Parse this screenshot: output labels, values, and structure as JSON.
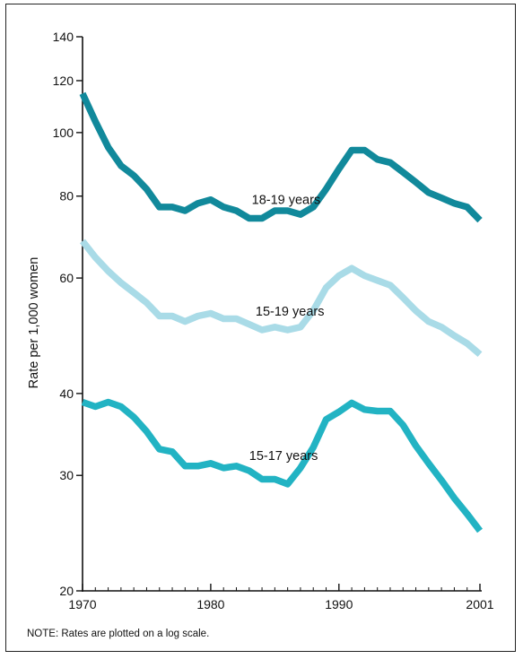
{
  "chart_data": {
    "type": "line",
    "ylabel": "Rate per 1,000 women",
    "xlabel": "",
    "yscale": "log",
    "ylim": [
      20,
      140
    ],
    "xlim": [
      1970,
      2001
    ],
    "yticks": [
      20,
      30,
      40,
      60,
      80,
      100,
      120,
      140
    ],
    "xtick_labels": [
      "1970",
      "1980",
      "1990",
      "2001"
    ],
    "xtick_values": [
      1970,
      1980,
      1990,
      2001
    ],
    "grid": false,
    "x": [
      1970,
      1971,
      1972,
      1973,
      1974,
      1975,
      1976,
      1977,
      1978,
      1979,
      1980,
      1981,
      1982,
      1983,
      1984,
      1985,
      1986,
      1987,
      1988,
      1989,
      1990,
      1991,
      1992,
      1993,
      1994,
      1995,
      1996,
      1997,
      1998,
      1999,
      2000,
      2001
    ],
    "series": [
      {
        "name": "18-19 years",
        "color": "#11899b",
        "values": [
          114.7,
          104,
          95,
          89,
          86,
          82,
          77,
          77,
          76,
          78,
          79,
          77,
          76,
          74,
          74,
          76,
          76,
          75,
          77,
          82,
          88,
          94,
          94,
          91,
          90,
          87,
          84,
          81,
          79.5,
          78,
          77,
          73.5
        ]
      },
      {
        "name": "15-19 years",
        "color": "#a9dbe7",
        "values": [
          68.3,
          64.5,
          61.5,
          59,
          57,
          55,
          52.5,
          52.5,
          51.5,
          52.5,
          53,
          52,
          52,
          51,
          50,
          50.5,
          50,
          50.5,
          53.5,
          58,
          60.5,
          62.1,
          60.5,
          59.5,
          58.5,
          56,
          53.5,
          51.5,
          50.5,
          49,
          47.7,
          45.9
        ]
      },
      {
        "name": "15-17 years",
        "color": "#22b3c3",
        "values": [
          38.8,
          38.2,
          38.8,
          38.2,
          36.8,
          35,
          32.9,
          32.6,
          31,
          31,
          31.3,
          30.8,
          31,
          30.5,
          29.6,
          29.6,
          29.1,
          30.8,
          33.1,
          36.5,
          37.5,
          38.7,
          37.8,
          37.6,
          37.6,
          35.8,
          33.3,
          31.3,
          29.5,
          27.7,
          26.2,
          24.7
        ]
      }
    ]
  },
  "note": "NOTE: Rates are plotted on a log scale."
}
